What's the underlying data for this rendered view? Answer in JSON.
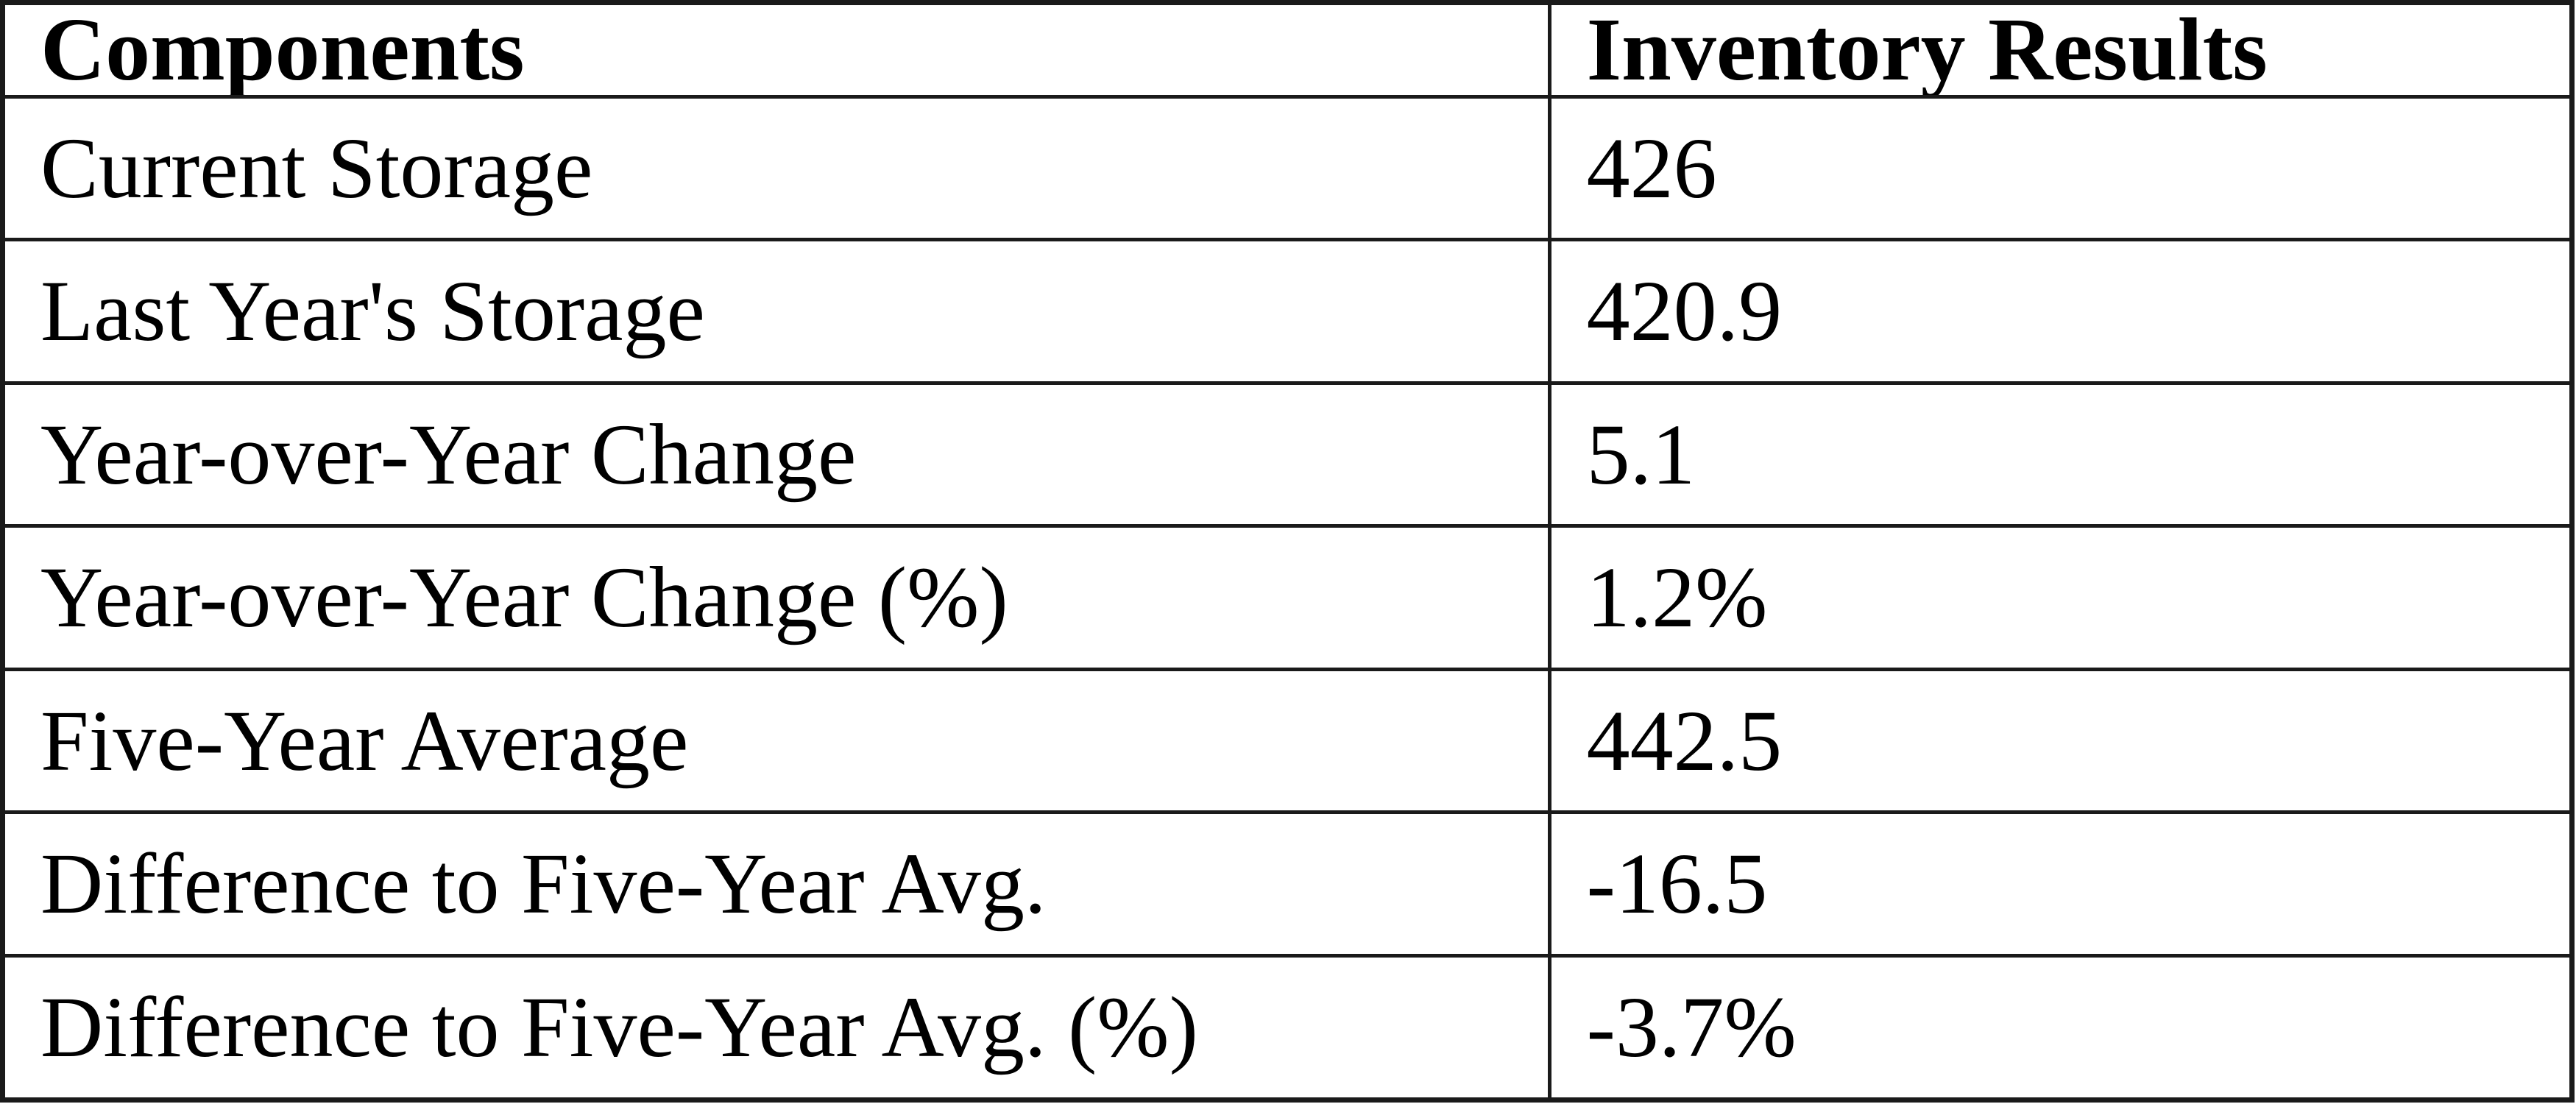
{
  "table": {
    "headers": [
      "Components",
      "Inventory Results"
    ],
    "rows": [
      [
        "Current Storage",
        "426"
      ],
      [
        "Last Year's Storage",
        "420.9"
      ],
      [
        "Year-over-Year Change",
        "5.1"
      ],
      [
        "Year-over-Year Change (%)",
        "1.2%"
      ],
      [
        "Five-Year Average",
        "442.5"
      ],
      [
        "Difference to Five-Year Avg.",
        "-16.5"
      ],
      [
        "Difference to Five-Year Avg. (%)",
        "-3.7%"
      ]
    ]
  },
  "chart_data": {
    "type": "table",
    "title": "",
    "columns": [
      "Components",
      "Inventory Results"
    ],
    "rows": [
      {
        "component": "Current Storage",
        "inventory_result": 426
      },
      {
        "component": "Last Year's Storage",
        "inventory_result": 420.9
      },
      {
        "component": "Year-over-Year Change",
        "inventory_result": 5.1
      },
      {
        "component": "Year-over-Year Change (%)",
        "inventory_result": "1.2%"
      },
      {
        "component": "Five-Year Average",
        "inventory_result": 442.5
      },
      {
        "component": "Difference to Five-Year Avg.",
        "inventory_result": -16.5
      },
      {
        "component": "Difference to Five-Year Avg. (%)",
        "inventory_result": "-3.7%"
      }
    ],
    "layout_hints": {
      "grid": "full-borders",
      "header_bold": true,
      "column_split_percent": [
        60.2,
        39.8
      ]
    }
  },
  "colors": {
    "border": "#1a1a1a",
    "background": "#ffffff",
    "text": "#000000"
  }
}
